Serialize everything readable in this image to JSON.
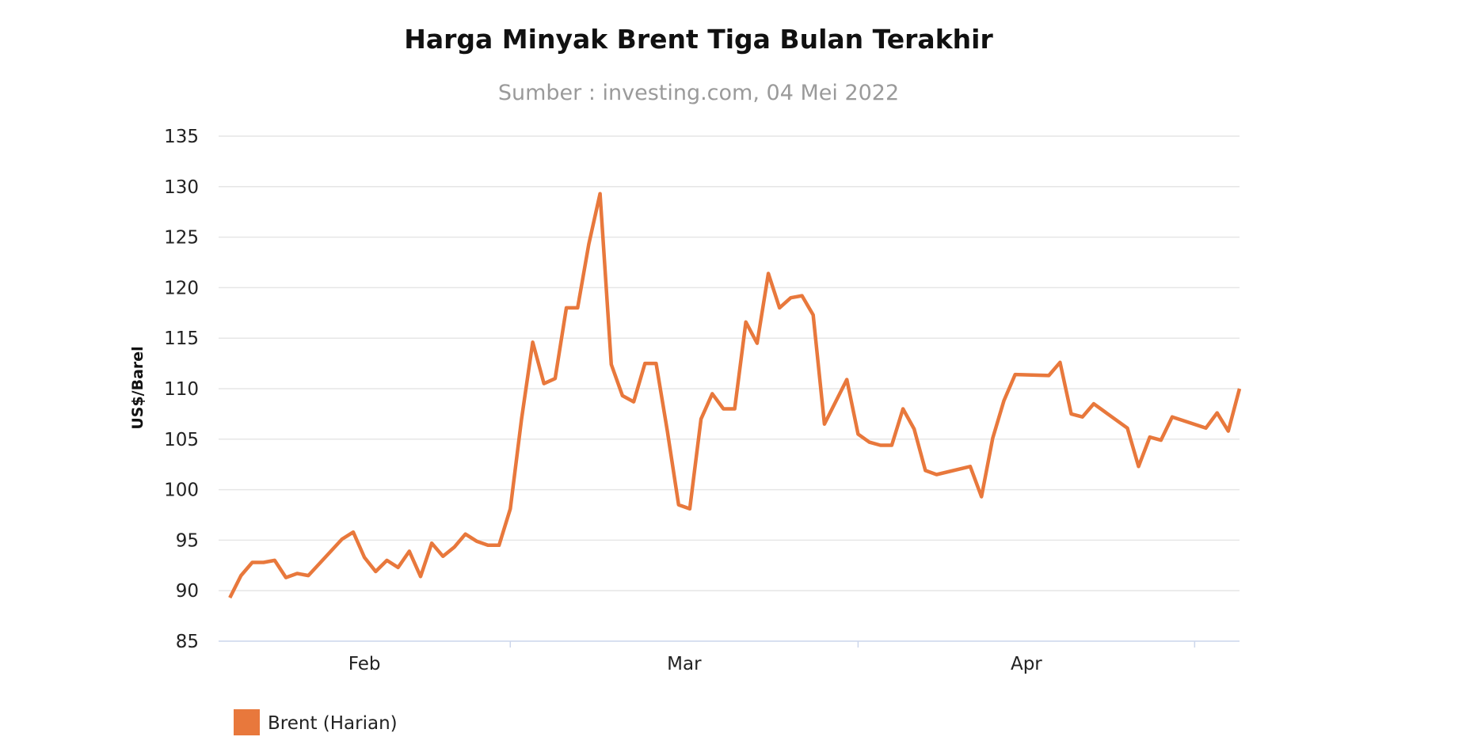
{
  "chart_data": {
    "type": "line",
    "title": "Harga Minyak Brent Tiga Bulan Terakhir",
    "subtitle": "Sumber : investing.com, 04 Mei 2022",
    "xlabel": "",
    "ylabel": "US$/Barel",
    "ylim": [
      85,
      135
    ],
    "yticks": [
      85,
      90,
      95,
      100,
      105,
      110,
      115,
      120,
      125,
      130,
      135
    ],
    "xticks": [
      {
        "label": "Feb",
        "month": "2022-02"
      },
      {
        "label": "Mar",
        "month": "2022-03"
      },
      {
        "label": "Apr",
        "month": "2022-04"
      }
    ],
    "xlim": [
      "2022-02-03",
      "2022-05-05"
    ],
    "grid": true,
    "legend_position": "bottom-left",
    "colors": {
      "line": "#E8783C",
      "grid": "#e6e6e6",
      "axis": "#ccd6eb"
    },
    "series": [
      {
        "name": "Brent (Harian)",
        "points": [
          [
            "2022-02-04",
            89.3
          ],
          [
            "2022-02-05",
            91.5
          ],
          [
            "2022-02-06",
            92.8
          ],
          [
            "2022-02-07",
            92.8
          ],
          [
            "2022-02-08",
            93.0
          ],
          [
            "2022-02-09",
            91.3
          ],
          [
            "2022-02-10",
            91.7
          ],
          [
            "2022-02-11",
            91.5
          ],
          [
            "2022-02-14",
            95.1
          ],
          [
            "2022-02-15",
            95.8
          ],
          [
            "2022-02-16",
            93.3
          ],
          [
            "2022-02-17",
            91.9
          ],
          [
            "2022-02-18",
            93.0
          ],
          [
            "2022-02-19",
            92.3
          ],
          [
            "2022-02-20",
            93.9
          ],
          [
            "2022-02-21",
            91.4
          ],
          [
            "2022-02-22",
            94.7
          ],
          [
            "2022-02-23",
            93.4
          ],
          [
            "2022-02-24",
            94.3
          ],
          [
            "2022-02-25",
            95.6
          ],
          [
            "2022-02-26",
            94.9
          ],
          [
            "2022-02-27",
            94.5
          ],
          [
            "2022-02-28",
            94.5
          ],
          [
            "2022-03-01",
            98.1
          ],
          [
            "2022-03-02",
            107.0
          ],
          [
            "2022-03-03",
            114.6
          ],
          [
            "2022-03-04",
            110.5
          ],
          [
            "2022-03-05",
            111.0
          ],
          [
            "2022-03-06",
            118.0
          ],
          [
            "2022-03-07",
            118.0
          ],
          [
            "2022-03-08",
            124.3
          ],
          [
            "2022-03-09",
            129.3
          ],
          [
            "2022-03-10",
            112.4
          ],
          [
            "2022-03-11",
            109.3
          ],
          [
            "2022-03-12",
            108.7
          ],
          [
            "2022-03-13",
            112.5
          ],
          [
            "2022-03-14",
            112.5
          ],
          [
            "2022-03-15",
            105.8
          ],
          [
            "2022-03-16",
            98.5
          ],
          [
            "2022-03-17",
            98.1
          ],
          [
            "2022-03-18",
            107.0
          ],
          [
            "2022-03-19",
            109.5
          ],
          [
            "2022-03-20",
            108.0
          ],
          [
            "2022-03-21",
            108.0
          ],
          [
            "2022-03-22",
            116.6
          ],
          [
            "2022-03-23",
            114.5
          ],
          [
            "2022-03-24",
            121.4
          ],
          [
            "2022-03-25",
            118.0
          ],
          [
            "2022-03-26",
            119.0
          ],
          [
            "2022-03-27",
            119.2
          ],
          [
            "2022-03-28",
            117.3
          ],
          [
            "2022-03-29",
            106.5
          ],
          [
            "2022-03-31",
            110.9
          ],
          [
            "2022-04-01",
            105.5
          ],
          [
            "2022-04-02",
            104.7
          ],
          [
            "2022-04-03",
            104.4
          ],
          [
            "2022-04-04",
            104.4
          ],
          [
            "2022-04-05",
            108.0
          ],
          [
            "2022-04-06",
            106.0
          ],
          [
            "2022-04-07",
            101.9
          ],
          [
            "2022-04-08",
            101.5
          ],
          [
            "2022-04-11",
            102.3
          ],
          [
            "2022-04-12",
            99.3
          ],
          [
            "2022-04-13",
            105.1
          ],
          [
            "2022-04-14",
            108.8
          ],
          [
            "2022-04-15",
            111.4
          ],
          [
            "2022-04-18",
            111.3
          ],
          [
            "2022-04-19",
            112.6
          ],
          [
            "2022-04-20",
            107.5
          ],
          [
            "2022-04-21",
            107.2
          ],
          [
            "2022-04-22",
            108.5
          ],
          [
            "2022-04-25",
            106.1
          ],
          [
            "2022-04-26",
            102.3
          ],
          [
            "2022-04-27",
            105.2
          ],
          [
            "2022-04-28",
            104.9
          ],
          [
            "2022-04-29",
            107.2
          ],
          [
            "2022-05-02",
            106.1
          ],
          [
            "2022-05-03",
            107.6
          ],
          [
            "2022-05-04",
            105.8
          ],
          [
            "2022-05-05",
            110.0
          ]
        ]
      }
    ]
  }
}
